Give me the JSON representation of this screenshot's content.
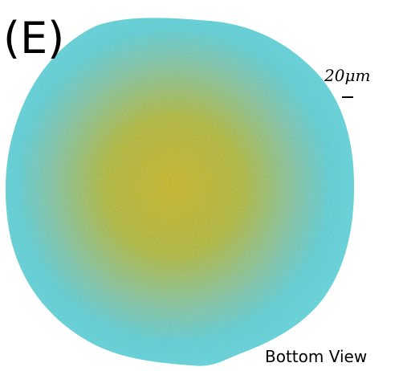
{
  "panel_label": "(E)",
  "scale_bar": {
    "label": "20μm"
  },
  "caption": "Bottom View"
}
